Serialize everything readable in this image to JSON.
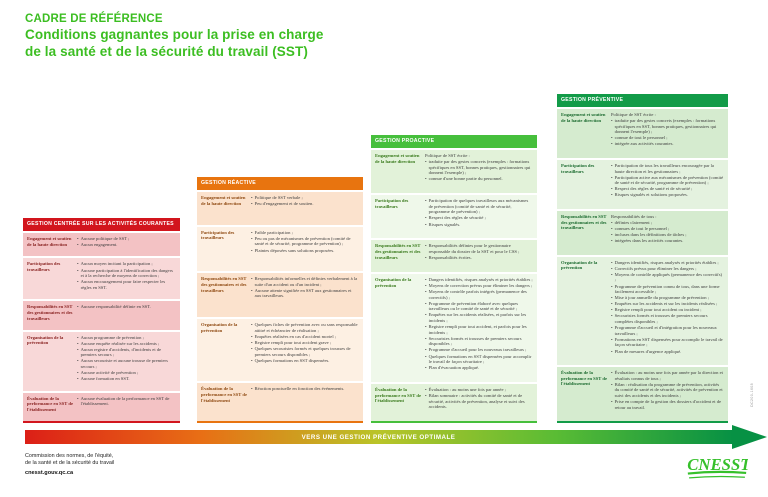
{
  "title": {
    "line1": "CADRE DE RÉFÉRENCE",
    "line2": "Conditions gagnantes pour la prise en charge",
    "line3": "de la santé et de la sécurité du travail (SST)"
  },
  "colors": {
    "title": "#3cbe22",
    "arrow_head": "#079144"
  },
  "columns": [
    {
      "id": "centree-activites-courantes",
      "header": "GESTION CENTRÉE SUR LES ACTIVITÉS COURANTES",
      "colors": {
        "header": "#d2151d",
        "label": "#8a2423",
        "row_odd": "#f3c2c4",
        "row_even": "#f8d8d8"
      },
      "rows": [
        {
          "label": "Engagement et soutien de la haute direction",
          "items": [
            {
              "text": "Aucune politique de SST ;",
              "bullet": true
            },
            {
              "text": "Aucun engagement.",
              "bullet": true
            }
          ]
        },
        {
          "label": "Participation des travailleurs",
          "items": [
            {
              "text": "Aucun moyen incitant la participation ;",
              "bullet": true
            },
            {
              "text": "Aucune participation à l'identification des dangers et à la recherche de moyens de correction ;",
              "bullet": true
            },
            {
              "text": "Aucun encouragement pour faire respecter les règles en SST.",
              "bullet": true
            }
          ]
        },
        {
          "label": "Responsabilités en SST des gestionnaires et des travailleurs",
          "items": [
            {
              "text": "Aucune responsabilité définie en SST.",
              "bullet": true
            }
          ]
        },
        {
          "label": "Organisation de la prévention",
          "items": [
            {
              "text": "Aucun programme de prévention ;",
              "bullet": true
            },
            {
              "text": "Aucune enquête réalisée sur les accidents ;",
              "bullet": true
            },
            {
              "text": "Aucun registre d'accidents, d'incidents et de premiers secours ;",
              "bullet": true
            },
            {
              "text": "Aucun secouriste et aucune trousse de premiers secours ;",
              "bullet": true
            },
            {
              "text": "Aucune activité de prévention ;",
              "bullet": true
            },
            {
              "text": "Aucune formation en SST.",
              "bullet": true
            }
          ]
        },
        {
          "label": "Évaluation de la performance en SST de l'établissement",
          "items": [
            {
              "text": "Aucune évaluation de la performance en SST de l'établissement.",
              "bullet": true
            }
          ]
        }
      ]
    },
    {
      "id": "reactive",
      "header": "GESTION RÉACTIVE",
      "colors": {
        "header": "#e8740f",
        "label": "#8f4a12",
        "row_odd": "#fbe2cd",
        "row_even": "#fdf0e3"
      },
      "rows": [
        {
          "label": "Engagement et soutien de la haute direction",
          "items": [
            {
              "text": "Politique de SST verbale ;",
              "bullet": true
            },
            {
              "text": "Peu d'engagement et de soutien.",
              "bullet": true
            }
          ]
        },
        {
          "label": "Participation des travailleurs",
          "items": [
            {
              "text": "Faible participation ;",
              "bullet": true
            },
            {
              "text": "Peu ou pas de mécanismes de prévention (comité de santé et de sécurité, programme de prévention) ;",
              "bullet": true
            },
            {
              "text": "Plaintes déposées sans solutions proposées.",
              "bullet": true
            }
          ]
        },
        {
          "label": "Responsabilités en SST des gestionnaires et des travailleurs",
          "items": [
            {
              "text": "Responsabilités informelles et définies verbalement à la suite d'un accident ou d'un incident ;",
              "bullet": true
            },
            {
              "text": "Aucune attente signifiée en SST aux gestionnaires et aux travailleurs.",
              "bullet": true
            }
          ]
        },
        {
          "label": "Organisation de la prévention",
          "items": [
            {
              "text": "Quelques fiches de prévention avec ou sans responsable attitré et échéancier de réalisation ;",
              "bullet": true
            },
            {
              "text": "Enquêtes réalisées en cas d'accident mortel ;",
              "bullet": true
            },
            {
              "text": "Registre rempli pour tout accident grave ;",
              "bullet": true
            },
            {
              "text": "Quelques secouristes formés et quelques trousses de premiers secours disponibles ;",
              "bullet": true
            },
            {
              "text": "Quelques formations en SST dispensées.",
              "bullet": true
            }
          ]
        },
        {
          "label": "Évaluation de la performance en SST de l'établissement",
          "items": [
            {
              "text": "Réaction ponctuelle en fonction des événements.",
              "bullet": true
            }
          ]
        }
      ]
    },
    {
      "id": "proactive",
      "header": "GESTION PROACTIVE",
      "colors": {
        "header": "#46bf3c",
        "label": "#397a1c",
        "row_odd": "#e2f2d9",
        "row_even": "#eff8ea"
      },
      "rows": [
        {
          "label": "Engagement et soutien de la haute direction",
          "items": [
            {
              "text": "Politique de SST écrite :",
              "bullet": false
            },
            {
              "text": "traduite par des gestes concrets (exemples : formations spécifiques en SST, bonnes pratiques, gestionnaires qui donnent l'exemple) ;",
              "bullet": true
            },
            {
              "text": "connue d'une bonne partie du personnel.",
              "bullet": true
            }
          ]
        },
        {
          "label": "Participation des travailleurs",
          "items": [
            {
              "text": "Participation de quelques travailleurs aux mécanismes de prévention (comité de santé et de sécurité, programme de prévention) ;",
              "bullet": true
            },
            {
              "text": "Respect des règles de sécurité ;",
              "bullet": true
            },
            {
              "text": "Risques signalés.",
              "bullet": true
            }
          ]
        },
        {
          "label": "Responsabilités en SST des gestionnaires et des travailleurs",
          "items": [
            {
              "text": "Responsabilités définies pour le gestionnaire responsable du dossier de la SST et pour le CSS ;",
              "bullet": true
            },
            {
              "text": "Responsabilités écrites.",
              "bullet": true
            }
          ]
        },
        {
          "label": "Organisation de la prévention",
          "items": [
            {
              "text": "Dangers identifiés, risques analysés et priorités établies ;",
              "bullet": true
            },
            {
              "text": "Moyens de correction prévus pour éliminer les dangers ;",
              "bullet": true
            },
            {
              "text": "Moyens de contrôle parfois intégrés (permanence des correctifs) ;",
              "bullet": true
            },
            {
              "text": "Programme de prévention élaboré avec quelques travailleurs ou le comité de santé et de sécurité ;",
              "bullet": true
            },
            {
              "text": "Enquêtes sur les accidents réalisées, et parfois sur les incidents ;",
              "bullet": true
            },
            {
              "text": "Registre rempli pour tout accident, et parfois pour les incidents ;",
              "bullet": true
            },
            {
              "text": "Secouristes formés et trousses de premiers secours disponibles ;",
              "bullet": true
            },
            {
              "text": "Programme d'accueil pour les nouveaux travailleurs ;",
              "bullet": true
            },
            {
              "text": "Quelques formations en SST dispensées pour accomplir le travail de façon sécuritaire ;",
              "bullet": true
            },
            {
              "text": "Plan d'évacuation appliqué.",
              "bullet": true
            }
          ]
        },
        {
          "label": "Évaluation de la performance en SST de l'établissement",
          "items": [
            {
              "text": "Évaluation : au moins une fois par année ;",
              "bullet": true
            },
            {
              "text": "Bilan sommaire : activités du comité de santé et de sécurité, activités de prévention, analyse et suivi des accidents.",
              "bullet": true
            }
          ]
        }
      ]
    },
    {
      "id": "preventive",
      "header": "GESTION PRÉVENTIVE",
      "colors": {
        "header": "#129b48",
        "label": "#1c6b30",
        "row_odd": "#d5ebcf",
        "row_even": "#e4f2df"
      },
      "rows": [
        {
          "label": "Engagement et soutien de la haute direction",
          "items": [
            {
              "text": "Politique de SST écrite :",
              "bullet": false
            },
            {
              "text": "traduite par des gestes concrets (exemples : formations spécifiques en SST, bonnes pratiques, gestionnaires qui donnent l'exemple) ;",
              "bullet": true
            },
            {
              "text": "connue de tout le personnel ;",
              "bullet": true
            },
            {
              "text": "intégrée aux activités courantes.",
              "bullet": true
            }
          ]
        },
        {
          "label": "Participation des travailleurs",
          "items": [
            {
              "text": "Participation de tous les travailleurs encouragée par la haute direction et les gestionnaires ;",
              "bullet": true
            },
            {
              "text": "Participation active aux mécanismes de prévention (comité de santé et de sécurité, programme de prévention) ;",
              "bullet": true
            },
            {
              "text": "Respect des règles de santé et de sécurité ;",
              "bullet": true
            },
            {
              "text": "Risques signalés et solutions proposées.",
              "bullet": true
            }
          ]
        },
        {
          "label": "Responsabilités en SST des gestionnaires et des travailleurs",
          "items": [
            {
              "text": "Responsabilités de tous :",
              "bullet": false
            },
            {
              "text": "définies clairement ;",
              "bullet": true
            },
            {
              "text": "connues de tout le personnel ;",
              "bullet": true
            },
            {
              "text": "incluses dans les définitions de tâches ;",
              "bullet": true
            },
            {
              "text": "intégrées dans les activités courantes.",
              "bullet": true
            }
          ]
        },
        {
          "label": "Organisation de la prévention",
          "items": [
            {
              "text": "Dangers identifiés, risques analysés et priorités établies ;",
              "bullet": true
            },
            {
              "text": "Correctifs prévus pour éliminer les dangers ;",
              "bullet": true
            },
            {
              "text": "Moyens de contrôle appliqués (permanence des correctifs) ;",
              "bullet": true
            },
            {
              "text": "Programme de prévention connu de tous, dans une forme facilement accessible ;",
              "bullet": true
            },
            {
              "text": "Mise à jour annuelle du programme de prévention ;",
              "bullet": true
            },
            {
              "text": "Enquêtes sur les accidents et sur les incidents réalisées ;",
              "bullet": true
            },
            {
              "text": "Registre rempli pour tout accident ou incident ;",
              "bullet": true
            },
            {
              "text": "Secouristes formés et trousses de premiers secours complètes disponibles ;",
              "bullet": true
            },
            {
              "text": "Programme d'accueil et d'intégration pour les nouveaux travailleurs ;",
              "bullet": true
            },
            {
              "text": "Formations en SST dispensées pour accomplir le travail de façon sécuritaire ;",
              "bullet": true
            },
            {
              "text": "Plan de mesures d'urgence appliqué.",
              "bullet": true
            }
          ]
        },
        {
          "label": "Évaluation de la performance en SST de l'établissement",
          "items": [
            {
              "text": "Évaluation : au moins une fois par année par la direction et résultats connus de tous ;",
              "bullet": true
            },
            {
              "text": "Bilan : réalisation du programme de prévention, activités du comité de santé et de sécurité, activités de prévention et suivi des accidents et des incidents ;",
              "bullet": true
            },
            {
              "text": "Prise en compte de la gestion des dossiers d'accident et de retour au travail.",
              "bullet": true
            }
          ]
        }
      ]
    }
  ],
  "arrow": {
    "label": "VERS UNE GESTION PRÉVENTIVE OPTIMALE",
    "gradient": [
      "#dc1f17",
      "#e86f15",
      "#b9c428",
      "#5abc34",
      "#079144"
    ]
  },
  "footer": {
    "org_line1": "Commission des normes, de l'équité,",
    "org_line2": "de la santé et de la sécurité du travail",
    "website": "cnesst.gouv.qc.ca",
    "logo_text": "CNESST",
    "logo_color": "#36c02b"
  },
  "side_code": "DC200-1608"
}
